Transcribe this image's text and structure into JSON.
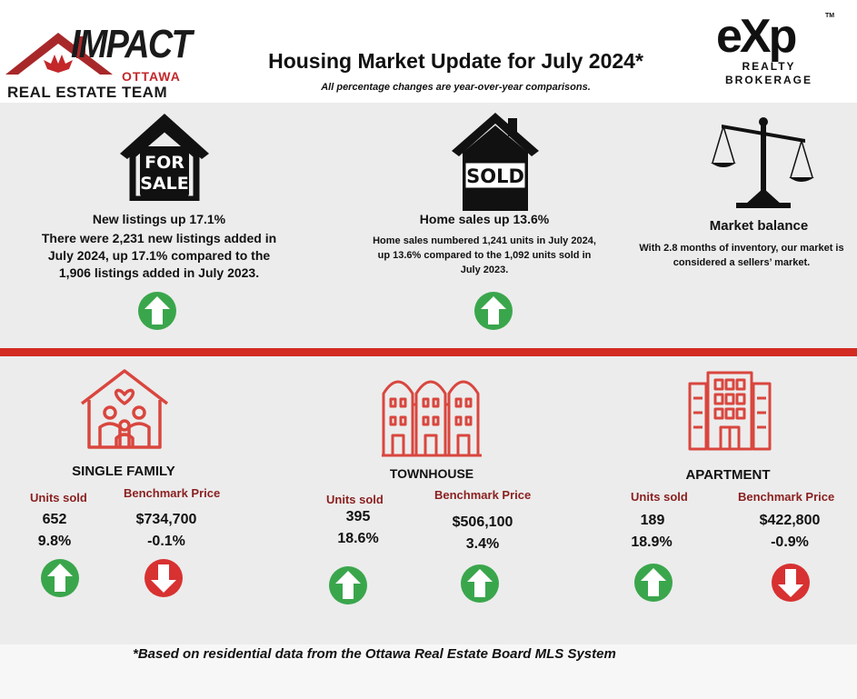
{
  "header": {
    "title": "Housing Market Update for July 2024*",
    "subtitle": "All percentage changes are year-over-year comparisons.",
    "team_logo": {
      "word": "IMPACT",
      "city": "OTTAWA",
      "team": "REAL ESTATE TEAM"
    },
    "brokerage_logo": {
      "word": "eXp",
      "tm": "TM",
      "line1": "REALTY",
      "line2": "BROKERAGE"
    }
  },
  "highlights": [
    {
      "icon": "for-sale-house-icon",
      "sign_text_1": "FOR",
      "sign_text_2": "SALE",
      "title": "New listings up 17.1%",
      "body": "There were 2,231 new listings added in July 2024, up 17.1% compared to the 1,906 listings added in July 2023.",
      "trend": "up"
    },
    {
      "icon": "sold-house-icon",
      "sign_text": "SOLD",
      "title": "Home sales up 13.6%",
      "body": "Home sales numbered 1,241 units in July 2024, up 13.6% compared to the 1,092 units sold in July 2023.",
      "trend": "up"
    },
    {
      "icon": "balance-scale-icon",
      "title": "Market balance",
      "body": "With 2.8 months of inventory, our market is considered a sellers’ market."
    }
  ],
  "segments": [
    {
      "icon": "single-family-house-icon",
      "title": "SINGLE FAMILY",
      "units_label": "Units sold",
      "units": "652",
      "units_change": "9.8%",
      "units_trend": "up",
      "price_label": "Benchmark Price",
      "price": "$734,700",
      "price_change": "-0.1%",
      "price_trend": "down"
    },
    {
      "icon": "townhouse-icon",
      "title": "TOWNHOUSE",
      "units_label": "Units sold",
      "units": "395",
      "units_change": "18.6%",
      "units_trend": "up",
      "price_label": "Benchmark Price",
      "price": "$506,100",
      "price_change": "3.4%",
      "price_trend": "up"
    },
    {
      "icon": "apartment-building-icon",
      "title": "APARTMENT",
      "units_label": "Units sold",
      "units": "189",
      "units_change": "18.9%",
      "units_trend": "up",
      "price_label": "Benchmark Price",
      "price": "$422,800",
      "price_change": "-0.9%",
      "price_trend": "down"
    }
  ],
  "footnote": "*Based on residential data from the Ottawa Real Estate Board MLS System",
  "colors": {
    "accent_red": "#d22b22",
    "label_red": "#8a1f1f",
    "up_green": "#3aa64c",
    "down_red": "#d83131",
    "icon_red": "#d9463e"
  }
}
